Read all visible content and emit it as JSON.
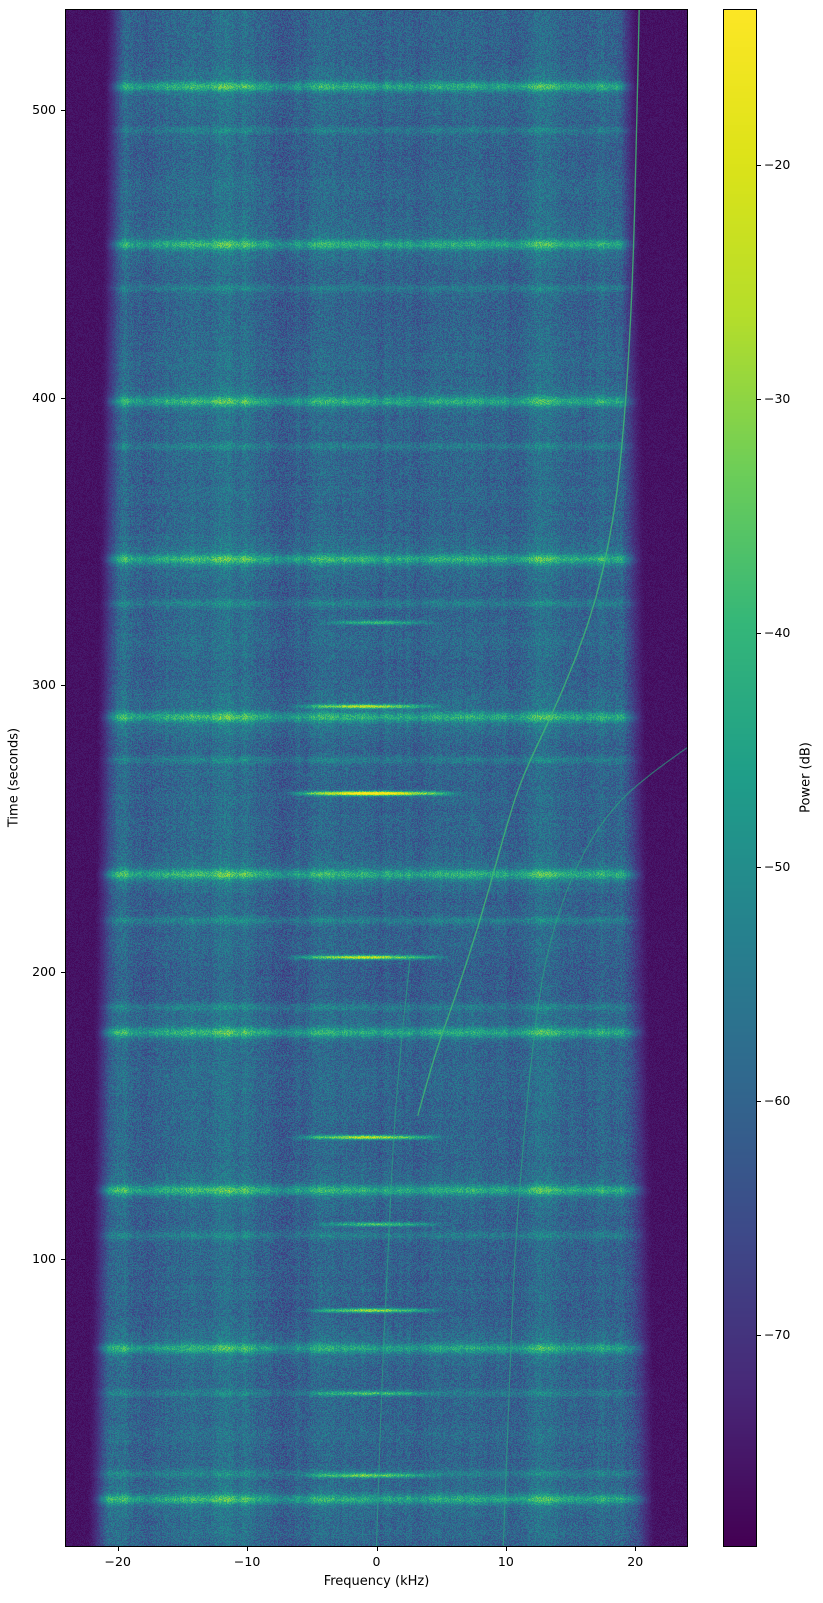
{
  "chart_data": {
    "type": "heatmap",
    "subtype": "spectrogram",
    "title": "",
    "xlabel": "Frequency (kHz)",
    "ylabel": "Time (seconds)",
    "x_range_khz": [
      -24,
      24
    ],
    "y_range_s": [
      0,
      535
    ],
    "x_ticks": [
      -20,
      -10,
      0,
      10,
      20
    ],
    "y_ticks": [
      100,
      200,
      300,
      400,
      500
    ],
    "grid": false,
    "colorbar": {
      "label": "Power (dB)",
      "ticks": [
        -20,
        -30,
        -40,
        -50,
        -60,
        -70
      ],
      "range_db": [
        -79,
        -13.4
      ],
      "colormap": "viridis"
    },
    "colormap_stops": [
      [
        0.0,
        "#440154"
      ],
      [
        0.1,
        "#482878"
      ],
      [
        0.2,
        "#3e4989"
      ],
      [
        0.3,
        "#31688e"
      ],
      [
        0.4,
        "#26828e"
      ],
      [
        0.5,
        "#1f9e89"
      ],
      [
        0.6,
        "#35b779"
      ],
      [
        0.7,
        "#6ece58"
      ],
      [
        0.8,
        "#b5de2b"
      ],
      [
        0.9,
        "#dce319"
      ],
      [
        1.0,
        "#fde725"
      ]
    ],
    "noise_floor": {
      "mean_norm": 0.295,
      "speckle": 0.17,
      "edge_dark_norm": 0.03
    },
    "broadband_bursts_s": [
      16.4,
      69,
      124,
      179,
      234.1,
      288.8,
      343.8,
      398.8,
      453.5,
      508.5
    ],
    "minor_bursts_s": [
      25.4,
      53.3,
      108.3,
      187.8,
      218,
      273.8,
      328.4,
      383.1,
      438.2,
      493.2
    ],
    "tone_bursts": [
      {
        "t_s": 24.7,
        "f_lo": -5.5,
        "f_hi": 4.3,
        "strength": 0.2
      },
      {
        "t_s": 53.3,
        "f_lo": -5.0,
        "f_hi": 4.0,
        "strength": 0.16
      },
      {
        "t_s": 82.2,
        "f_lo": -5.0,
        "f_hi": 4.5,
        "strength": 0.3
      },
      {
        "t_s": 112.2,
        "f_lo": -4.3,
        "f_hi": 4.7,
        "strength": 0.22
      },
      {
        "t_s": 142.5,
        "f_lo": -6.0,
        "f_hi": 4.7,
        "strength": 0.32
      },
      {
        "t_s": 205.2,
        "f_lo": -6.5,
        "f_hi": 4.9,
        "strength": 0.34
      },
      {
        "t_s": 262.3,
        "f_lo": -6.3,
        "f_hi": 5.7,
        "strength": 0.46
      },
      {
        "t_s": 292.6,
        "f_lo": -6.0,
        "f_hi": 4.5,
        "strength": 0.3
      },
      {
        "t_s": 321.8,
        "f_lo": -3.8,
        "f_hi": 4.1,
        "strength": 0.18
      }
    ],
    "chirps": [
      {
        "name": "fundamental",
        "strength": 0.55,
        "points_t_f": [
          [
            0,
            0.0
          ],
          [
            51,
            0.35
          ],
          [
            103,
            0.9
          ],
          [
            155,
            1.45
          ],
          [
            205,
            2.6
          ]
        ]
      },
      {
        "name": "main-sweep",
        "strength": 1.0,
        "points_t_f": [
          [
            150,
            3.2
          ],
          [
            170,
            4.4
          ],
          [
            190,
            6.0
          ],
          [
            216,
            7.9
          ],
          [
            242,
            9.5
          ],
          [
            262,
            10.8
          ],
          [
            274,
            11.9
          ],
          [
            290,
            13.6
          ],
          [
            310,
            15.5
          ],
          [
            330,
            17.0
          ],
          [
            350,
            18.0
          ],
          [
            370,
            18.7
          ],
          [
            400,
            19.3
          ],
          [
            440,
            19.8
          ],
          [
            490,
            20.1
          ],
          [
            535,
            20.3
          ]
        ]
      },
      {
        "name": "shifted-sweep",
        "strength": 0.6,
        "points_t_f": [
          [
            0,
            9.8
          ],
          [
            51,
            10.2
          ],
          [
            103,
            10.7
          ],
          [
            138,
            11.3
          ],
          [
            176,
            12.1
          ],
          [
            204,
            13.0
          ],
          [
            228,
            14.6
          ],
          [
            246,
            16.5
          ],
          [
            260,
            18.8
          ],
          [
            270,
            21.5
          ],
          [
            278,
            24.0
          ]
        ]
      }
    ]
  }
}
